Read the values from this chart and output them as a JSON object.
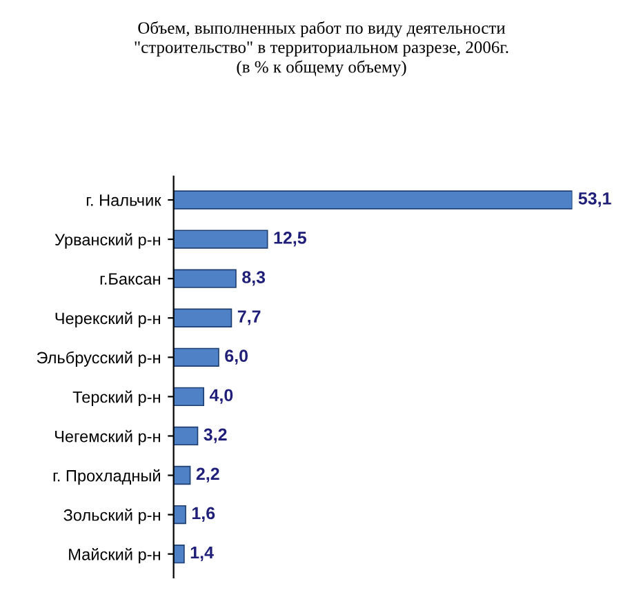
{
  "chart_data": {
    "type": "bar",
    "orientation": "horizontal",
    "title": "Объем, выполненных работ по виду деятельности\n\"строительство\" в территориальном разрезе, 2006г.\n(в % к общему объему)",
    "categories": [
      "г. Нальчик",
      "Урванский р-н",
      "г.Баксан",
      "Черекский р-н",
      "Эльбрусский р-н",
      "Терский р-н",
      "Чегемский р-н",
      "г. Прохладный",
      "Зольский р-н",
      "Майский р-н"
    ],
    "values": [
      53.1,
      12.5,
      8.3,
      7.7,
      6.0,
      4.0,
      3.2,
      2.2,
      1.6,
      1.4
    ],
    "value_labels": [
      "53,1",
      "12,5",
      "8,3",
      "7,7",
      "6,0",
      "4,0",
      "3,2",
      "2,2",
      "1,6",
      "1,4"
    ],
    "color": "#4f81c7",
    "grid": false,
    "legend": false
  }
}
